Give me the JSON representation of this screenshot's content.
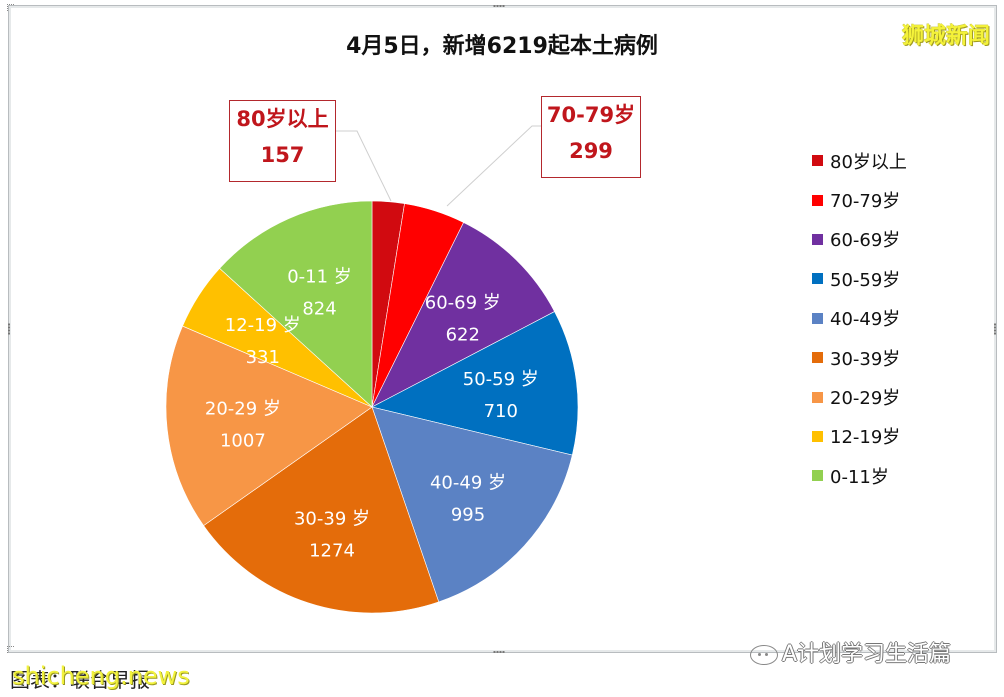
{
  "title": "4月5日，新增6219起本土病例",
  "brand_watermark": "狮城新闻",
  "source_text": "图表：联合早报",
  "source_watermark": "shicheng.news",
  "account_label": "A计划学习生活篇",
  "account_icon": "wechat-icon",
  "callouts": [
    {
      "label": "80岁以上",
      "value": "157"
    },
    {
      "label": "70-79岁",
      "value": "299"
    }
  ],
  "chart_data": {
    "type": "pie",
    "title": "4月5日，新增6219起本土病例",
    "total": 6219,
    "start_angle_deg": 0,
    "direction": "clockwise",
    "legend_position": "right",
    "categories": [
      "80岁以上",
      "70-79岁",
      "60-69岁",
      "50-59岁",
      "40-49岁",
      "30-39岁",
      "20-29岁",
      "12-19岁",
      "0-11岁"
    ],
    "values": [
      157,
      299,
      622,
      710,
      995,
      1274,
      1007,
      331,
      824
    ],
    "colors": [
      "#d10a10",
      "#ff0000",
      "#7030a0",
      "#0070c0",
      "#5b82c4",
      "#e46c0a",
      "#f79646",
      "#ffc000",
      "#92d050"
    ],
    "inside_labels": [
      false,
      false,
      true,
      true,
      true,
      true,
      true,
      true,
      true
    ]
  },
  "legend": {
    "items": [
      {
        "label": "80岁以上",
        "color": "#d10a10"
      },
      {
        "label": "70-79岁",
        "color": "#ff0000"
      },
      {
        "label": "60-69岁",
        "color": "#7030a0"
      },
      {
        "label": "50-59岁",
        "color": "#0070c0"
      },
      {
        "label": "40-49岁",
        "color": "#5b82c4"
      },
      {
        "label": "30-39岁",
        "color": "#e46c0a"
      },
      {
        "label": "20-29岁",
        "color": "#f79646"
      },
      {
        "label": "12-19岁",
        "color": "#ffc000"
      },
      {
        "label": "0-11岁",
        "color": "#92d050"
      }
    ]
  }
}
